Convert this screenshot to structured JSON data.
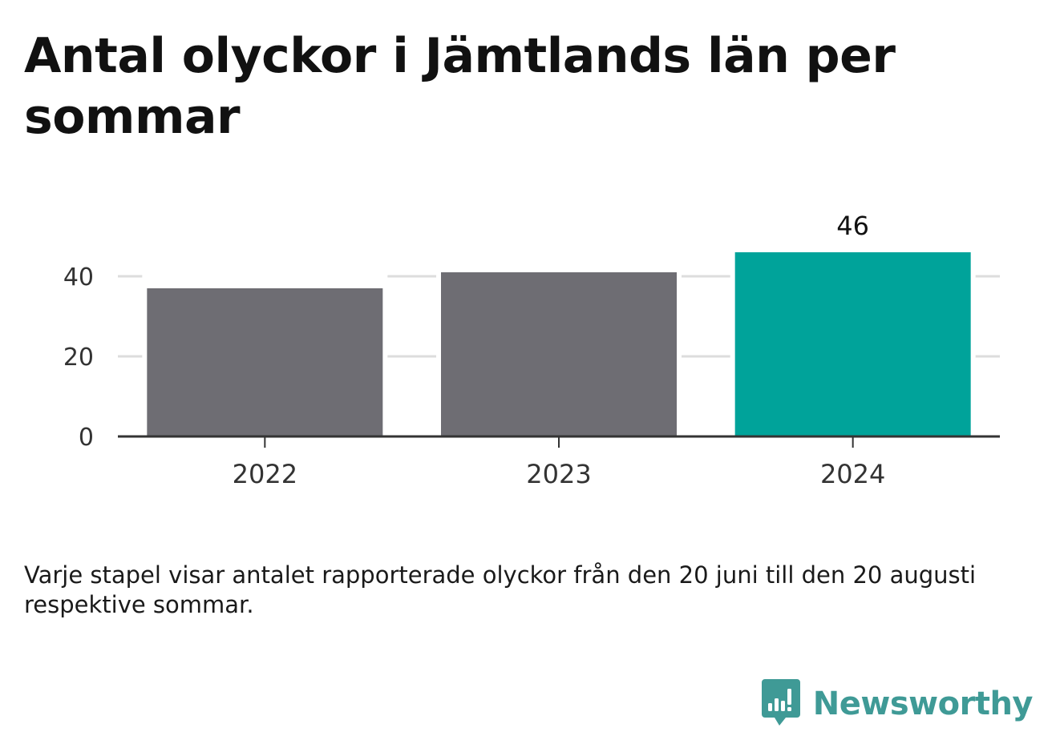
{
  "title": "Antal olyckor i Jämtlands län per sommar",
  "caption": "Varje stapel visar antalet rapporterade olyckor från den 20 juni till den 20 augusti respektive sommar.",
  "brand": {
    "name": "Newsworthy",
    "icon": "newsworthy-logo-icon",
    "color": "#3f9a96"
  },
  "chart_data": {
    "type": "bar",
    "categories": [
      "2022",
      "2023",
      "2024"
    ],
    "values": [
      37,
      41,
      46
    ],
    "highlight_index": 2,
    "data_labels": [
      null,
      null,
      "46"
    ],
    "colors": {
      "default": "#6e6d73",
      "highlight": "#00a39a",
      "grid": "#dddddd",
      "axis": "#333333",
      "label": "#333333"
    },
    "ylim": [
      0,
      46
    ],
    "yticks": [
      0,
      20,
      40
    ],
    "ytick_labels": [
      "0",
      "20",
      "40"
    ],
    "grid": true,
    "xlabel": "",
    "ylabel": ""
  }
}
